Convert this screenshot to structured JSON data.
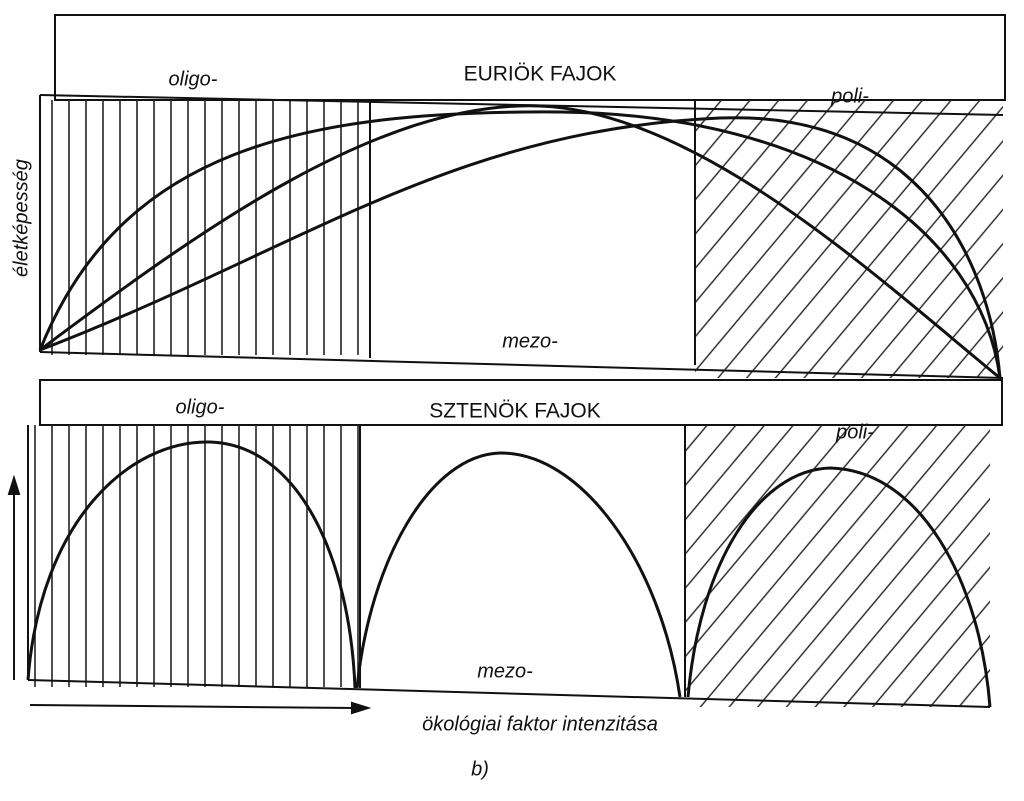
{
  "panels": [
    {
      "title": "EURIÖK FAJOK",
      "left": "oligo-",
      "middle": "mezo-",
      "right": "poli-"
    },
    {
      "title": "SZTENÖK FAJOK",
      "left": "oligo-",
      "middle": "mezo-",
      "right": "poli-"
    }
  ],
  "y_axis_label": "életképesség",
  "x_axis_label": "ökológiai faktor intenzitása",
  "caption": "b)"
}
